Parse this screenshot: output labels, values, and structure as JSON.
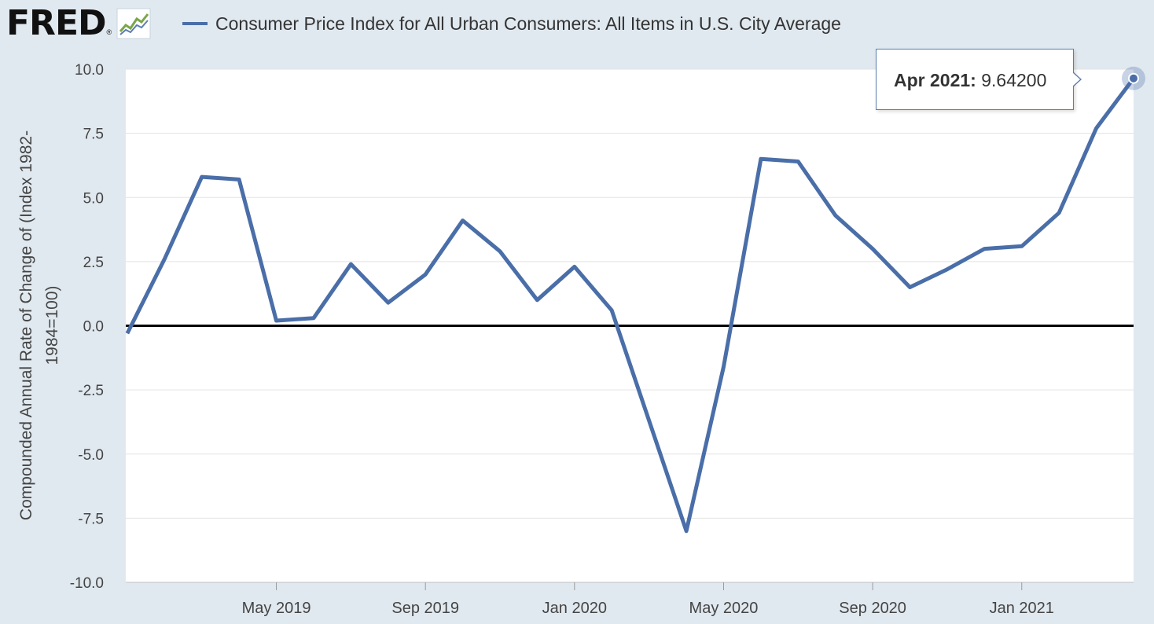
{
  "header": {
    "logo_text": "FRED",
    "logo_reg": "®",
    "logo_icon": "line-chart-icon"
  },
  "chart_data": {
    "type": "line",
    "title": "Consumer Price Index for All Urban Consumers: All Items in U.S. City Average",
    "ylabel_lines": [
      "Compounded Annual Rate of Change of (Index 1982-",
      "1984=100)"
    ],
    "xlabel": "",
    "ylim": [
      -10,
      10
    ],
    "yticks": [
      10,
      7.5,
      5,
      2.5,
      0,
      -2.5,
      -5,
      -7.5,
      -10
    ],
    "ytick_labels": [
      "10.0",
      "7.5",
      "5.0",
      "2.5",
      "0.0",
      "-2.5",
      "-5.0",
      "-7.5",
      "-10.0"
    ],
    "xticks": [
      {
        "date": "2019-05",
        "label": "May 2019"
      },
      {
        "date": "2019-09",
        "label": "Sep 2019"
      },
      {
        "date": "2020-01",
        "label": "Jan 2020"
      },
      {
        "date": "2020-05",
        "label": "May 2020"
      },
      {
        "date": "2020-09",
        "label": "Sep 2020"
      },
      {
        "date": "2021-01",
        "label": "Jan 2021"
      }
    ],
    "grid": true,
    "zero_line": true,
    "series": [
      {
        "name": "Consumer Price Index for All Urban Consumers: All Items in U.S. City Average",
        "color": "#4a6ea8",
        "x": [
          "2019-01",
          "2019-02",
          "2019-03",
          "2019-04",
          "2019-05",
          "2019-06",
          "2019-07",
          "2019-08",
          "2019-09",
          "2019-10",
          "2019-11",
          "2019-12",
          "2020-01",
          "2020-02",
          "2020-03",
          "2020-04",
          "2020-05",
          "2020-06",
          "2020-07",
          "2020-08",
          "2020-09",
          "2020-10",
          "2020-11",
          "2020-12",
          "2021-01",
          "2021-02",
          "2021-03",
          "2021-04"
        ],
        "values": [
          -0.3,
          2.6,
          5.8,
          5.7,
          0.2,
          0.3,
          2.4,
          0.9,
          2.0,
          4.1,
          2.9,
          1.0,
          2.3,
          0.6,
          -3.7,
          -8.0,
          -1.6,
          6.5,
          6.4,
          4.3,
          3.0,
          1.5,
          2.2,
          3.0,
          3.1,
          4.4,
          7.7,
          9.642
        ]
      }
    ],
    "tooltip": {
      "date_label": "Apr 2021:",
      "value_label": "9.64200"
    }
  }
}
